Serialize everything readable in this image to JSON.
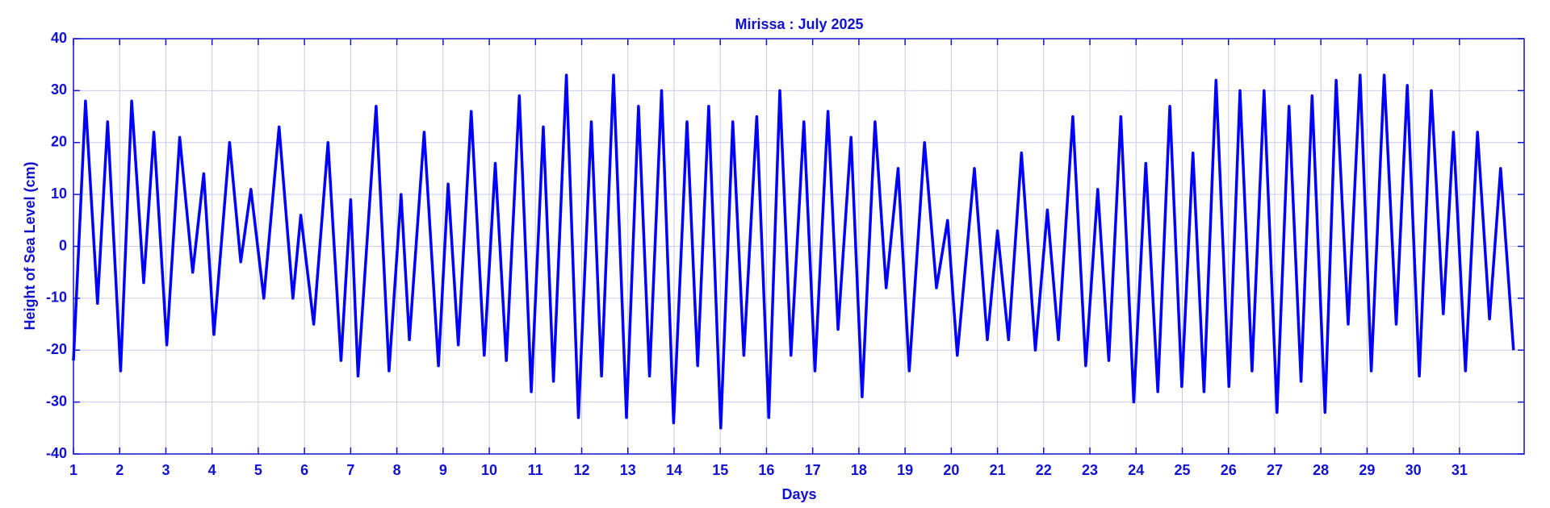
{
  "chart_data": {
    "type": "line",
    "title": "Mirissa : July 2025",
    "x_label": "Days",
    "y_label": "Height of Sea Level (cm)",
    "color": "#0000ff",
    "grid": true,
    "xlim": [
      1,
      32.4
    ],
    "ylim": [
      -40,
      40
    ],
    "xticks": [
      1,
      2,
      3,
      4,
      5,
      6,
      7,
      8,
      9,
      10,
      11,
      12,
      13,
      14,
      15,
      16,
      17,
      18,
      19,
      20,
      21,
      22,
      23,
      24,
      25,
      26,
      27,
      28,
      29,
      30,
      31
    ],
    "yticks": [
      -40,
      -30,
      -20,
      -10,
      0,
      10,
      20,
      30,
      40
    ],
    "x": [
      1.0,
      1.26,
      1.52,
      1.74,
      2.02,
      2.26,
      2.52,
      2.74,
      3.02,
      3.3,
      3.58,
      3.82,
      4.04,
      4.38,
      4.62,
      4.84,
      5.12,
      5.45,
      5.75,
      5.92,
      6.2,
      6.51,
      6.79,
      7.0,
      7.16,
      7.55,
      7.83,
      8.09,
      8.27,
      8.59,
      8.9,
      9.11,
      9.33,
      9.61,
      9.89,
      10.13,
      10.37,
      10.65,
      10.91,
      11.17,
      11.39,
      11.67,
      11.93,
      12.21,
      12.43,
      12.69,
      12.97,
      13.23,
      13.47,
      13.73,
      13.99,
      14.28,
      14.51,
      14.75,
      15.01,
      15.27,
      15.51,
      15.79,
      16.05,
      16.29,
      16.53,
      16.81,
      17.05,
      17.33,
      17.55,
      17.83,
      18.07,
      18.35,
      18.59,
      18.85,
      19.09,
      19.42,
      19.68,
      19.92,
      20.13,
      20.5,
      20.78,
      21.0,
      21.24,
      21.52,
      21.82,
      22.08,
      22.32,
      22.63,
      22.91,
      23.17,
      23.41,
      23.67,
      23.95,
      24.21,
      24.47,
      24.73,
      24.99,
      25.23,
      25.47,
      25.73,
      26.01,
      26.25,
      26.51,
      26.77,
      27.05,
      27.31,
      27.57,
      27.81,
      28.09,
      28.33,
      28.59,
      28.85,
      29.09,
      29.37,
      29.63,
      29.87,
      30.13,
      30.39,
      30.65,
      30.87,
      31.13,
      31.39,
      31.65,
      31.89,
      32.17
    ],
    "values": [
      -22,
      28,
      -11,
      24,
      -24,
      28,
      -7,
      22,
      -19,
      21,
      -5,
      14,
      -17,
      20,
      -3,
      11,
      -10,
      23,
      -10,
      6,
      -15,
      20,
      -22,
      9,
      -25,
      27,
      -24,
      10,
      -18,
      22,
      -23,
      12,
      -19,
      26,
      -21,
      16,
      -22,
      29,
      -28,
      23,
      -26,
      33,
      -33,
      24,
      -25,
      33,
      -33,
      27,
      -25,
      30,
      -34,
      24,
      -23,
      27,
      -35,
      24,
      -21,
      25,
      -33,
      30,
      -21,
      24,
      -24,
      26,
      -16,
      21,
      -29,
      24,
      -8,
      15,
      -24,
      20,
      -8,
      5,
      -21,
      15,
      -18,
      3,
      -18,
      18,
      -20,
      7,
      -18,
      25,
      -23,
      11,
      -22,
      25,
      -30,
      16,
      -28,
      27,
      -27,
      18,
      -28,
      32,
      -27,
      30,
      -24,
      30,
      -32,
      27,
      -26,
      29,
      -32,
      32,
      -15,
      33,
      -24,
      33,
      -15,
      31,
      -25,
      30,
      -13,
      22,
      -24,
      22,
      -14,
      15,
      -20
    ]
  }
}
